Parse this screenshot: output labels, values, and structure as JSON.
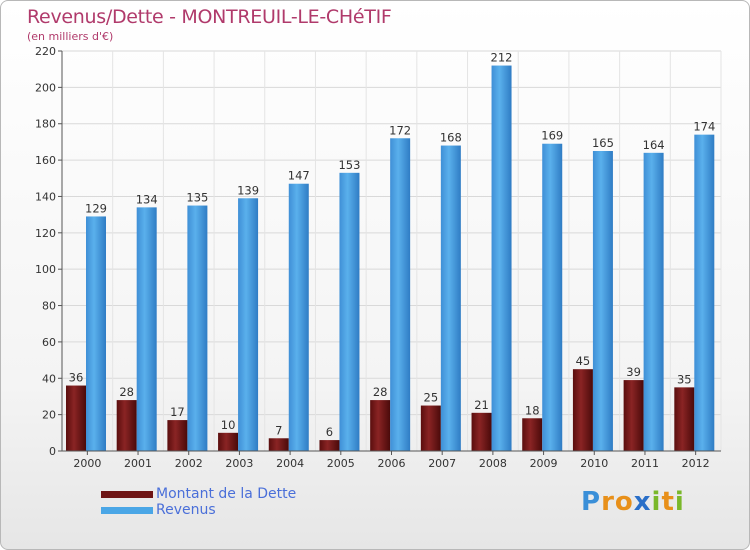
{
  "header": {
    "title": "Revenus/Dette - MONTREUIL-LE-CHéTIF",
    "subtitle": "(en milliers d'€)"
  },
  "colors": {
    "title": "#b03a6b",
    "dette": "#7a1a1a",
    "revenus": "#4aa6e6",
    "legend_text": "#4a6fd9"
  },
  "logo": {
    "text": "Proxiti"
  },
  "chart_data": {
    "type": "bar",
    "title": "Revenus/Dette - MONTREUIL-LE-CHéTIF",
    "ylabel": "(en milliers d'€)",
    "xlabel": "",
    "categories": [
      "2000",
      "2001",
      "2002",
      "2003",
      "2004",
      "2005",
      "2006",
      "2007",
      "2008",
      "2009",
      "2010",
      "2011",
      "2012"
    ],
    "series": [
      {
        "name": "Montant de la Dette",
        "color": "#7a1a1a",
        "values": [
          36,
          28,
          17,
          10,
          7,
          6,
          28,
          25,
          21,
          18,
          45,
          39,
          35
        ]
      },
      {
        "name": "Revenus",
        "color": "#4aa6e6",
        "values": [
          129,
          134,
          135,
          139,
          147,
          153,
          172,
          168,
          212,
          169,
          165,
          164,
          174
        ]
      }
    ],
    "ylim": [
      0,
      220
    ],
    "yticks": [
      0,
      20,
      40,
      60,
      80,
      100,
      120,
      140,
      160,
      180,
      200,
      220
    ],
    "grid": true,
    "legend": "bottom-left"
  }
}
